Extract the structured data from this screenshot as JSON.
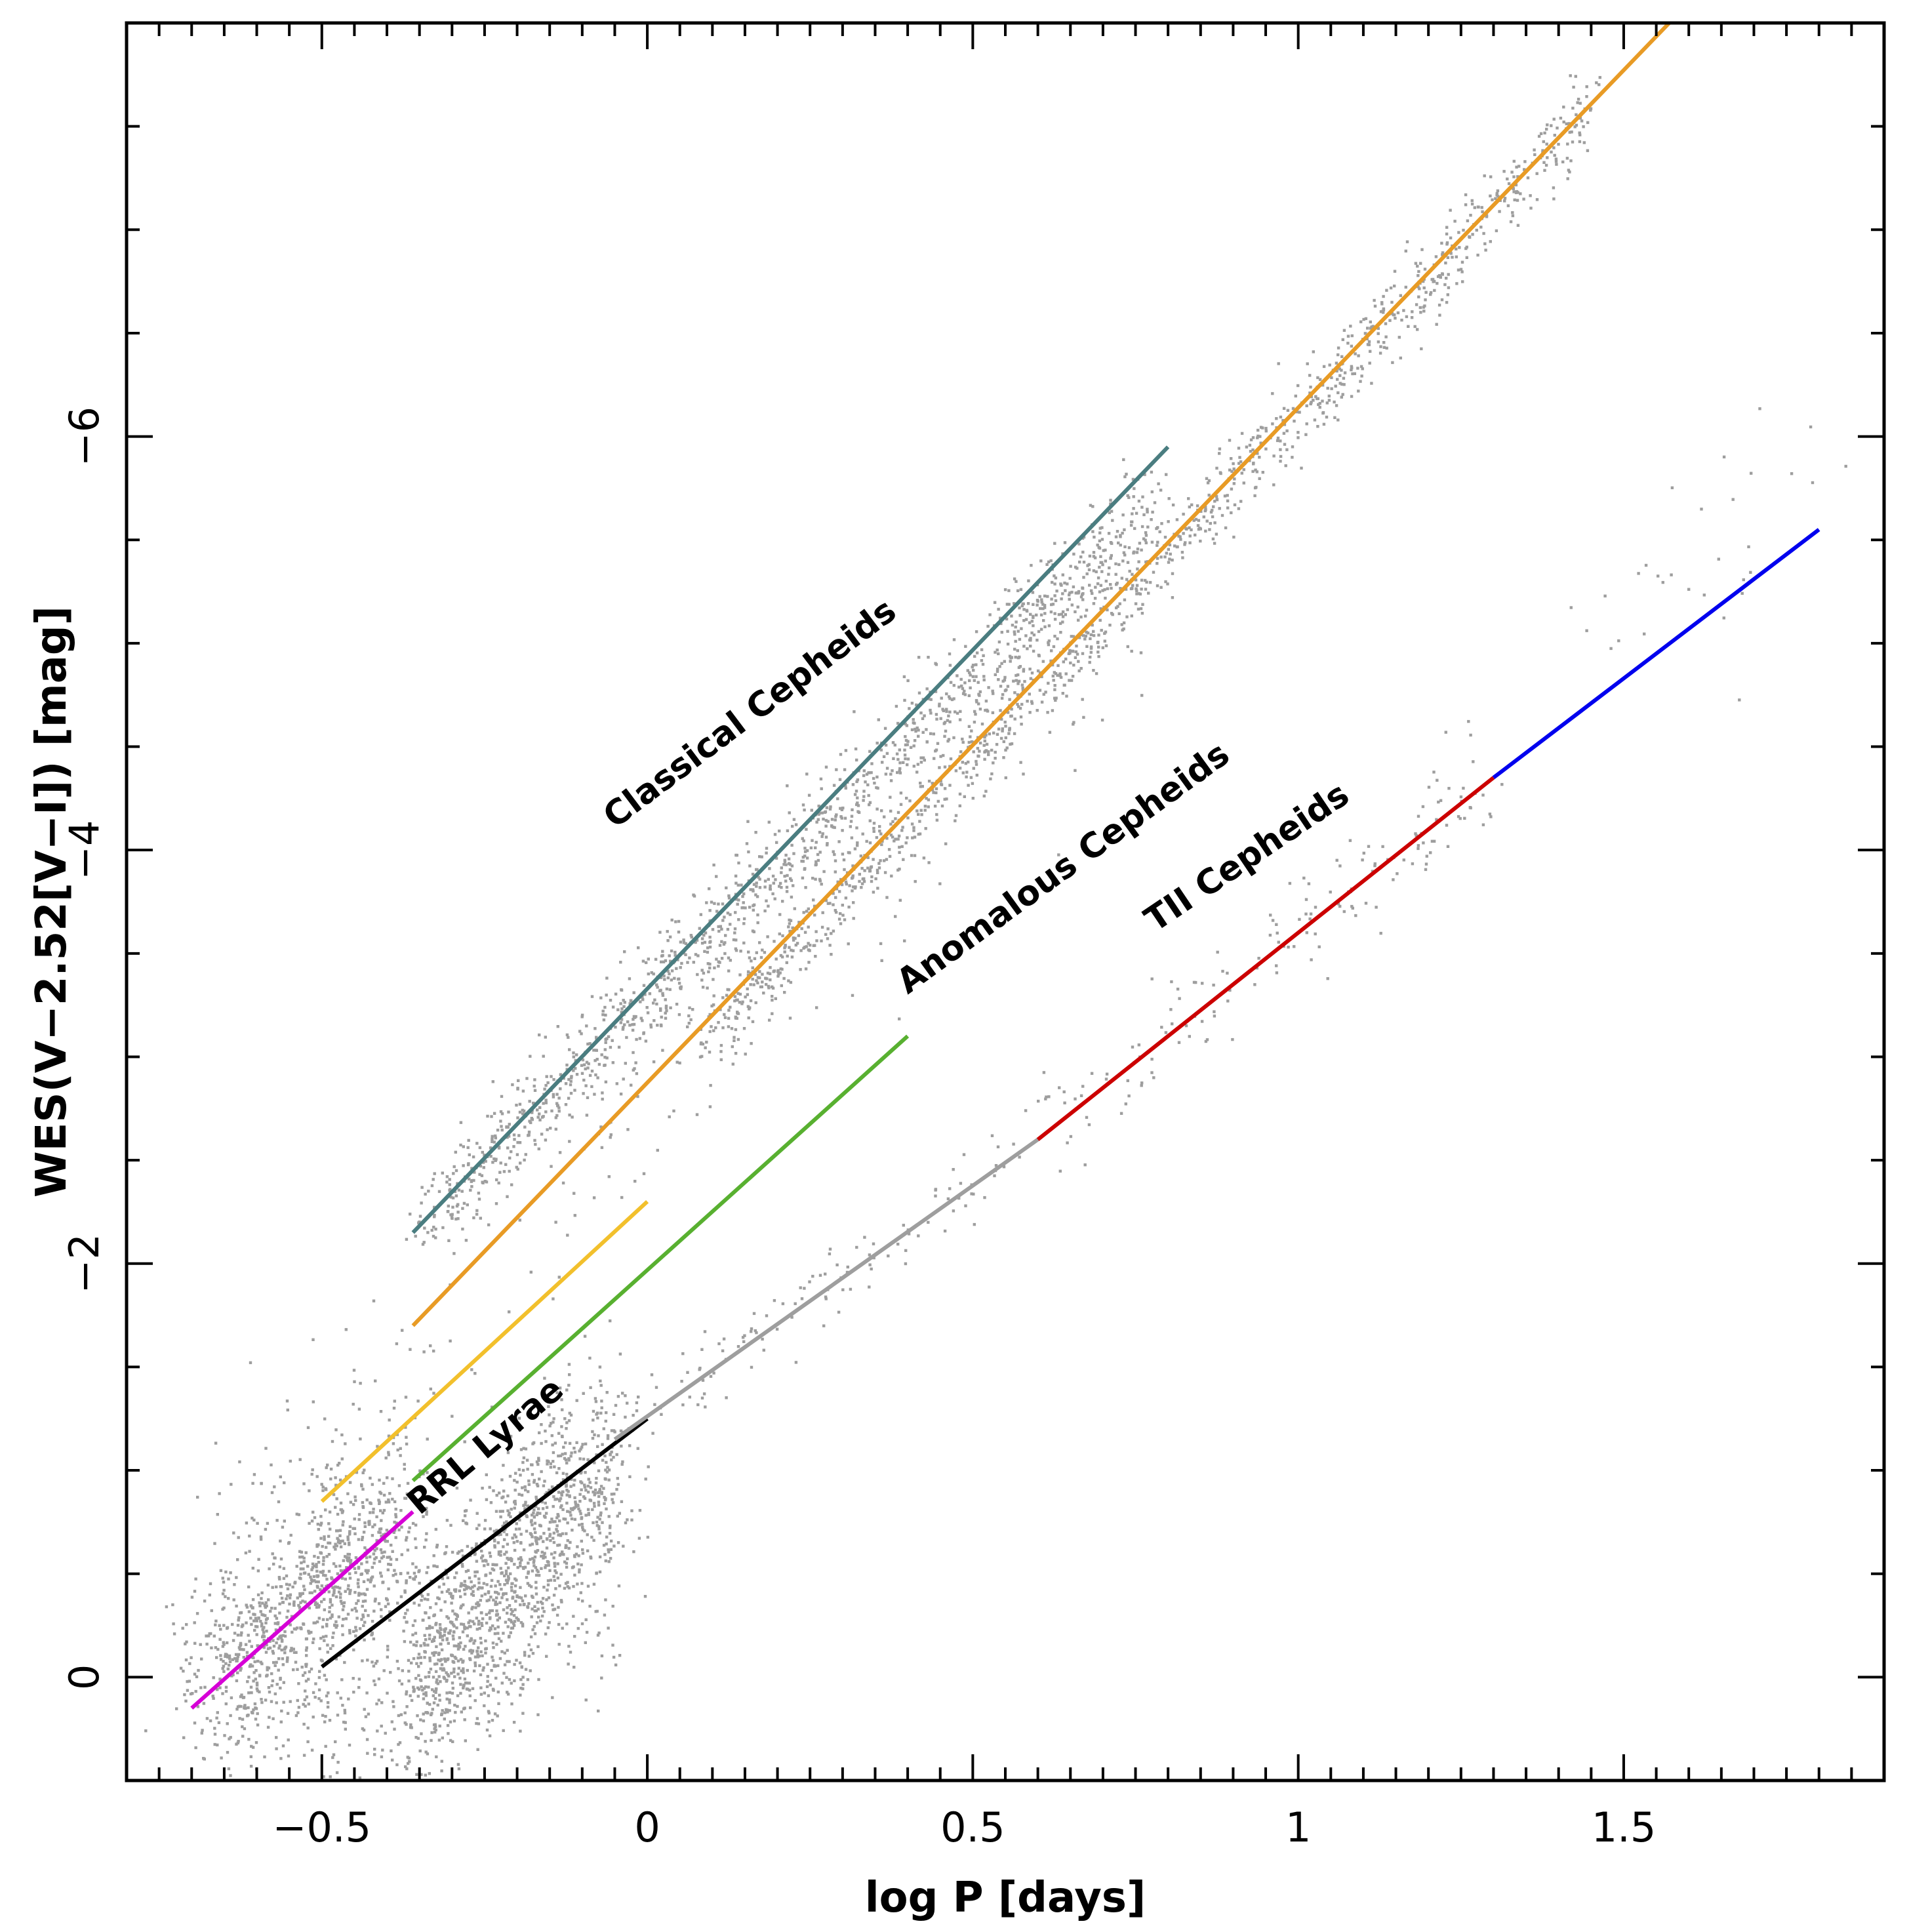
{
  "chart_data": {
    "type": "scatter",
    "xlabel": "log P [days]",
    "ylabel": "WES(V−2.52[V−I]) [mag]",
    "xlim": [
      -0.8,
      1.9
    ],
    "ylim": [
      0.5,
      -8.0
    ],
    "y_inverted": true,
    "grid": false,
    "x_ticks": [
      -0.5,
      0,
      0.5,
      1,
      1.5
    ],
    "x_tick_labels": [
      "−0.5",
      "0",
      "0.5",
      "1",
      "1.5"
    ],
    "y_ticks": [
      0,
      -2,
      -4,
      -6
    ],
    "y_tick_labels": [
      "0",
      "−2",
      "−4",
      "−6"
    ],
    "point_color": "#9e9e9e",
    "series": [
      {
        "color": "#d600d6",
        "x": [
          -0.7,
          -0.36
        ],
        "y": [
          0.15,
          -0.8
        ]
      },
      {
        "color": "#000000",
        "x": [
          -0.5,
          0.0
        ],
        "y": [
          -0.05,
          -1.25
        ]
      },
      {
        "color": "#f2c02c",
        "x": [
          -0.5,
          0.0
        ],
        "y": [
          -0.85,
          -2.3
        ]
      },
      {
        "color": "#58b030",
        "x": [
          -0.36,
          0.4
        ],
        "y": [
          -0.95,
          -3.1
        ]
      },
      {
        "color": "#9e9e9e",
        "x": [
          -0.05,
          0.6
        ],
        "y": [
          -1.15,
          -2.6
        ]
      },
      {
        "color": "#cc0000",
        "x": [
          0.6,
          1.3
        ],
        "y": [
          -2.6,
          -4.35
        ]
      },
      {
        "color": "#0000ee",
        "x": [
          1.3,
          1.8
        ],
        "y": [
          -4.35,
          -5.55
        ]
      },
      {
        "color": "#e89b25",
        "x": [
          -0.36,
          1.57
        ],
        "y": [
          -1.7,
          -8.0
        ]
      },
      {
        "color": "#4a7d80",
        "x": [
          -0.36,
          0.8
        ],
        "y": [
          -2.15,
          -5.95
        ]
      }
    ],
    "annotations": [
      {
        "text": "Classical Cepheids",
        "x": -0.05,
        "y": -4.1,
        "angle": -37
      },
      {
        "text": "Anomalous Cepheids",
        "x": 0.4,
        "y": -3.3,
        "angle": -36
      },
      {
        "text": "TII Cepheids",
        "x": 0.78,
        "y": -3.6,
        "angle": -34
      },
      {
        "text": "RRL Lyrae",
        "x": -0.35,
        "y": -0.78,
        "angle": -40
      }
    ],
    "scatter_clusters": [
      {
        "x_from": -0.68,
        "x_to": -0.38,
        "y_from": 0.1,
        "y_to": -0.75,
        "n": 950,
        "sx": 0.035,
        "sy": 0.22
      },
      {
        "x_from": -0.36,
        "x_to": -0.06,
        "y_from": 0.05,
        "y_to": -1.05,
        "n": 1300,
        "sx": 0.035,
        "sy": 0.25
      },
      {
        "x_from": -0.62,
        "x_to": -0.35,
        "y_from": -0.6,
        "y_to": -1.4,
        "n": 140,
        "sx": 0.06,
        "sy": 0.3
      },
      {
        "x_from": -0.55,
        "x_to": -0.1,
        "y_from": 0.25,
        "y_to": -0.2,
        "n": 240,
        "sx": 0.06,
        "sy": 0.18
      },
      {
        "x_from": -0.34,
        "x_to": 0.78,
        "y_from": -2.2,
        "y_to": -5.7,
        "n": 1300,
        "sx": 0.02,
        "sy": 0.11
      },
      {
        "x_from": -0.25,
        "x_to": 0.78,
        "y_from": -2.0,
        "y_to": -5.3,
        "n": 160,
        "sx": 0.04,
        "sy": 0.28
      },
      {
        "x_from": 0.1,
        "x_to": 1.45,
        "y_from": -3.1,
        "y_to": -7.6,
        "n": 1200,
        "sx": 0.015,
        "sy": 0.09
      },
      {
        "x_from": -0.05,
        "x_to": 0.6,
        "y_from": -1.2,
        "y_to": -2.6,
        "n": 120,
        "sx": 0.02,
        "sy": 0.08
      },
      {
        "x_from": 0.6,
        "x_to": 1.3,
        "y_from": -2.6,
        "y_to": -4.35,
        "n": 160,
        "sx": 0.02,
        "sy": 0.12
      },
      {
        "x_from": 1.45,
        "x_to": 1.8,
        "y_from": -5.0,
        "y_to": -5.8,
        "n": 30,
        "sx": 0.03,
        "sy": 0.25
      }
    ]
  }
}
